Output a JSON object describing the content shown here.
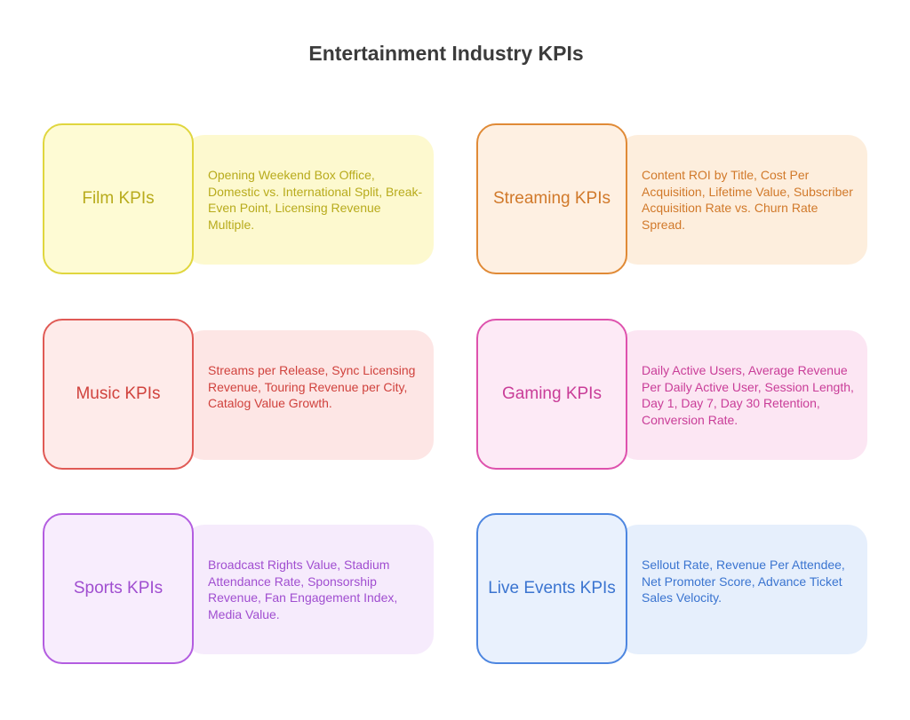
{
  "title": "Entertainment Industry KPIs",
  "cards": [
    {
      "label": "Film KPIs",
      "text": "Opening Weekend Box Office, Domestic vs. International Split, Break-Even Point, Licensing Revenue Multiple.",
      "stroke": "#e0d63e",
      "box_fill": "#fefbd4",
      "panel_fill": "#fdf9cf",
      "color": "#b8ab1c"
    },
    {
      "label": "Streaming KPIs",
      "text": "Content ROI by Title, Cost Per Acquisition, Lifetime Value, Subscriber Acquisition Rate vs. Churn Rate Spread.",
      "stroke": "#e08a36",
      "box_fill": "#fef0e2",
      "panel_fill": "#fdeedd",
      "color": "#d1792a"
    },
    {
      "label": "Music KPIs",
      "text": "Streams per Release, Sync Licensing Revenue, Touring Revenue per City, Catalog Value Growth.",
      "stroke": "#e05a55",
      "box_fill": "#feebea",
      "panel_fill": "#fde6e5",
      "color": "#d0423d"
    },
    {
      "label": "Gaming KPIs",
      "text": "Daily Active Users, Average Revenue Per Daily Active User, Session Length, Day 1, Day 7, Day 30 Retention, Conversion Rate.",
      "stroke": "#de52ad",
      "box_fill": "#fdeaf6",
      "panel_fill": "#fce6f3",
      "color": "#c93d98"
    },
    {
      "label": "Sports KPIs",
      "text": "Broadcast Rights Value, Stadium Attendance Rate, Sponsorship Revenue, Fan Engagement Index, Media Value.",
      "stroke": "#b35de0",
      "box_fill": "#f8edfd",
      "panel_fill": "#f6ebfc",
      "color": "#a04ed0"
    },
    {
      "label": "Live Events KPIs",
      "text": "Sellout Rate, Revenue Per Attendee, Net Promoter Score, Advance Ticket Sales Velocity.",
      "stroke": "#4d86e0",
      "box_fill": "#e9f1fd",
      "panel_fill": "#e6effc",
      "color": "#3a74d0"
    }
  ]
}
